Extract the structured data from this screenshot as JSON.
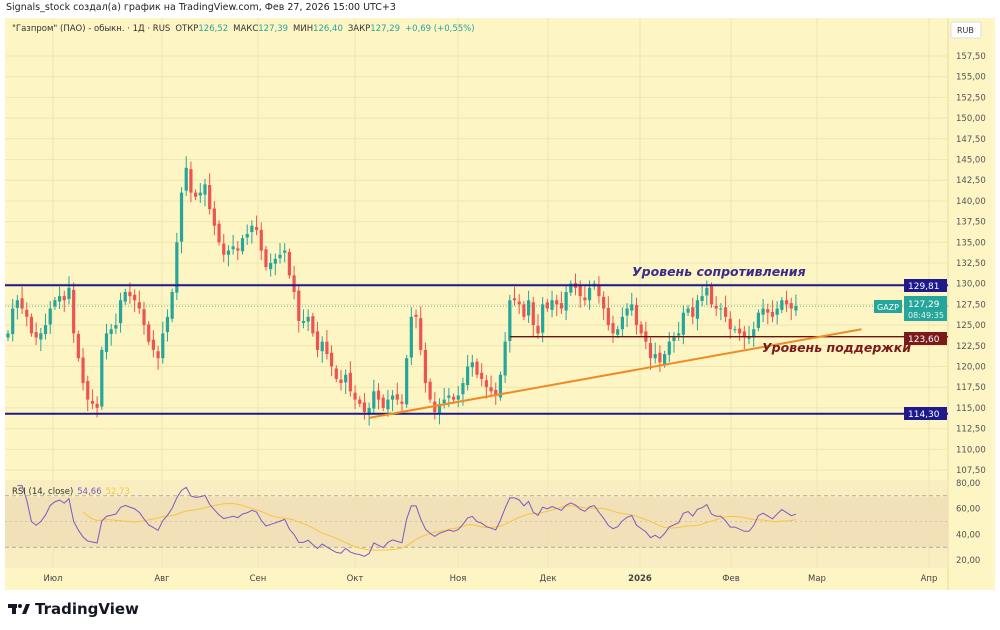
{
  "header": {
    "attribution": "Signals_stock создал(а) график на TradingView.com, Фев 27, 2026 15:00 UTC+3"
  },
  "legend": {
    "symbol": "\"Газпром\" (ПАО) - обыкн. · 1Д · RUS",
    "open_label": "ОТКР",
    "open": "126,52",
    "high_label": "МАКС",
    "high": "127,39",
    "low_label": "МИН",
    "low": "126,40",
    "close_label": "ЗАКР",
    "close": "127,29",
    "change": "+0,69 (+0,55%)"
  },
  "price_axis": {
    "currency": "RUB",
    "ticks": [
      "157,50",
      "155,00",
      "152,50",
      "150,00",
      "147,50",
      "145,00",
      "142,50",
      "140,00",
      "137,50",
      "135,00",
      "132,50",
      "130,00",
      "127,50",
      "125,00",
      "122,50",
      "120,00",
      "117,50",
      "115,00",
      "112,50",
      "110,00",
      "107,50"
    ]
  },
  "time_axis": {
    "ticks": [
      "Июл",
      "Авг",
      "Сен",
      "Окт",
      "Ноя",
      "Дек",
      "2026",
      "Фев",
      "Мар",
      "Апр"
    ]
  },
  "price_labels": {
    "resistance": "129,81",
    "support": "123,60",
    "low_level": "114,30",
    "ticker": "GAZP",
    "last": "127,29",
    "countdown": "08:49:35"
  },
  "annotations": {
    "resistance_text": "Уровень сопротивления",
    "support_text": "Уровень поддержки"
  },
  "rsi": {
    "title": "RSI (14, close)",
    "value": "54,66",
    "ma_value": "52,73",
    "ticks": [
      "80,00",
      "60,00",
      "40,00",
      "20,00"
    ]
  },
  "footer": {
    "brand": "TradingView"
  },
  "colors": {
    "background": "#fdf5c4",
    "up": "#26a69a",
    "down": "#ef5350",
    "level_line": "#1f1a8c",
    "support_line": "#6b1212",
    "trendline": "#f08a24",
    "rsi_line": "#7e57c2",
    "rsi_ma": "#f5c542"
  },
  "chart_data": {
    "type": "candlestick",
    "timeframe": "1D",
    "ylim": [
      107.5,
      157.5
    ],
    "closes": [
      124,
      127,
      128,
      127,
      126,
      124,
      123.5,
      124,
      125,
      127,
      128,
      128.5,
      128,
      129.5,
      124,
      121,
      118,
      116,
      115.5,
      115,
      122,
      124,
      124.5,
      125,
      128,
      129,
      128.5,
      128,
      127,
      125,
      123,
      122,
      121,
      124,
      126,
      129,
      135,
      141,
      144,
      141,
      140.5,
      141,
      142,
      139,
      137,
      135,
      133.5,
      134,
      134.5,
      134,
      135.5,
      136,
      137,
      136.5,
      134,
      132,
      132.5,
      133,
      133.5,
      134,
      131,
      129,
      125.5,
      125.5,
      126,
      124,
      122,
      123,
      121.5,
      120,
      118.5,
      118,
      119,
      117,
      116,
      115.5,
      114.5,
      115,
      117,
      116,
      115,
      116,
      116.5,
      116,
      115.5,
      121,
      126,
      126,
      122,
      118,
      116,
      114.5,
      115.5,
      116,
      116.5,
      116,
      116.5,
      118,
      120,
      120.5,
      119,
      118.5,
      117.5,
      117,
      116.5,
      119,
      123,
      128,
      128,
      127.5,
      126,
      128,
      125,
      124,
      127.5,
      127,
      128,
      127.5,
      127,
      129,
      130,
      129.5,
      128.5,
      128,
      129.5,
      130,
      128.5,
      127,
      125,
      124,
      124.5,
      126,
      127,
      127.5,
      125,
      124,
      123,
      121,
      121.5,
      120.5,
      121.5,
      123,
      123.5,
      124,
      126.5,
      127,
      126,
      128,
      128.5,
      129.5,
      127.5,
      127,
      127,
      126,
      124.5,
      124.5,
      124,
      123.5,
      123.5,
      124.5,
      126.5,
      127,
      126.5,
      126,
      127,
      128,
      127.5,
      127,
      127.29
    ],
    "levels": {
      "resistance": 129.81,
      "support": 123.6,
      "low": 114.3,
      "last": 127.29
    },
    "trendline": {
      "from": {
        "bar": 77,
        "price": 113.8
      },
      "to": {
        "bar": 182,
        "price": 124.5
      }
    },
    "support_from_bar": 107,
    "rsi_period": 14,
    "rsi_levels": [
      70,
      30
    ],
    "rsi_ylim": [
      20,
      80
    ]
  }
}
